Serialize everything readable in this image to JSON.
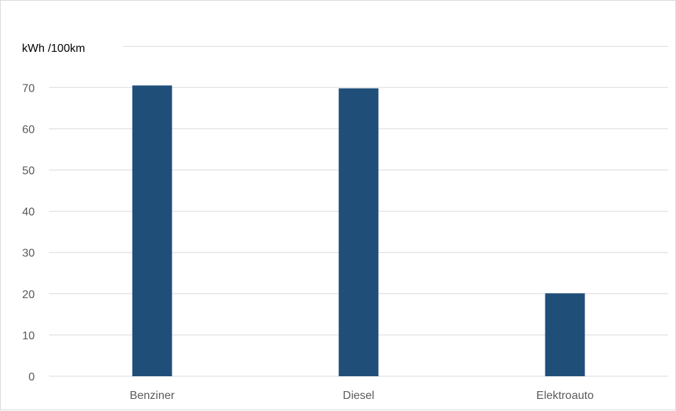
{
  "chart_data": {
    "type": "bar",
    "ylabel": "kWh /100km",
    "xlabel": "",
    "categories": [
      "Benziner",
      "Diesel",
      "Elektroauto"
    ],
    "values": [
      70.5,
      69.8,
      20.1
    ],
    "ylim": [
      0,
      80
    ],
    "yticks": [
      0,
      10,
      20,
      30,
      40,
      50,
      60,
      70
    ],
    "grid": true,
    "legend": "none",
    "bar_color": "#1f4e79",
    "grid_color": "#d9d9d9"
  }
}
